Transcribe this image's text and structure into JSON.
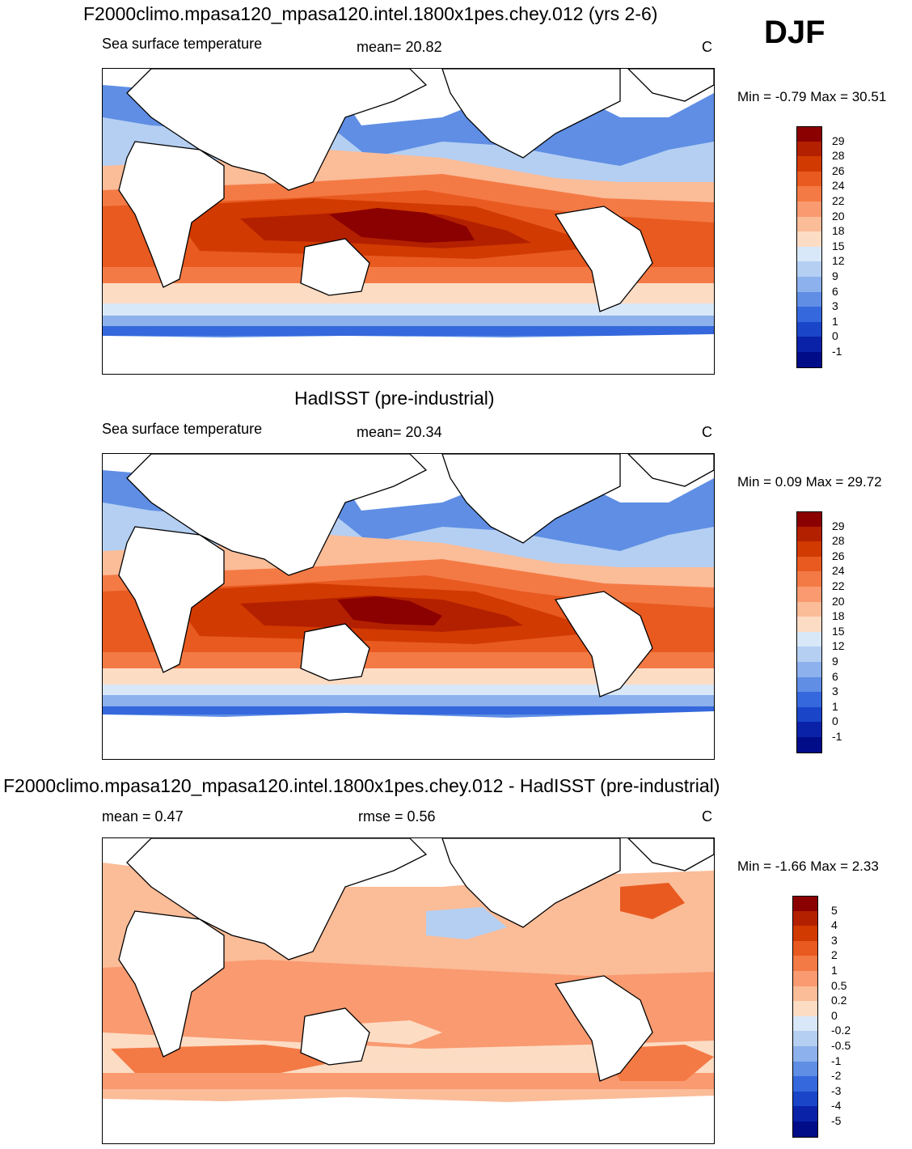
{
  "season": "DJF",
  "panels": [
    {
      "title": "F2000climo.mpasa120_mpasa120.intel.1800x1pes.chey.012 (yrs 2-6)",
      "left_label": "Sea surface temperature",
      "center_label": "mean=  20.82",
      "unit": "C",
      "minmax": "Min =  -0.79 Max =  30.51"
    },
    {
      "title": "HadISST (pre-industrial)",
      "left_label": "Sea surface temperature",
      "center_label": "mean=  20.34",
      "unit": "C",
      "minmax": "Min =   0.09 Max =  29.72"
    },
    {
      "title": "F2000climo.mpasa120_mpasa120.intel.1800x1pes.chey.012 - HadISST (pre-industrial)",
      "left_label": "mean =   0.47",
      "center_label": "rmse =   0.56",
      "unit": "C",
      "minmax": "Min =  -1.66 Max =   2.33"
    }
  ],
  "colorbars": {
    "sst": {
      "labels": [
        "29",
        "28",
        "26",
        "24",
        "22",
        "20",
        "18",
        "15",
        "12",
        "9",
        "6",
        "3",
        "1",
        "0",
        "-1"
      ],
      "colors": [
        "#8b0000",
        "#b32000",
        "#d13a00",
        "#e85a20",
        "#f47a45",
        "#f99a70",
        "#fbbc98",
        "#fddcc4",
        "#d8e8f8",
        "#b4cff2",
        "#8db1ec",
        "#5f8ee4",
        "#3568dc",
        "#1a45c8",
        "#0a22a8",
        "#000c88"
      ]
    },
    "diff": {
      "labels": [
        "5",
        "4",
        "3",
        "2",
        "1",
        "0.5",
        "0.2",
        "0",
        "-0.2",
        "-0.5",
        "-1",
        "-2",
        "-3",
        "-4",
        "-5"
      ],
      "colors": [
        "#8b0000",
        "#b32000",
        "#d13a00",
        "#e85a20",
        "#f47a45",
        "#f99a70",
        "#fbbc98",
        "#fddcc4",
        "#d8e8f8",
        "#b4cff2",
        "#8db1ec",
        "#5f8ee4",
        "#3568dc",
        "#1a45c8",
        "#0a22a8",
        "#000c88"
      ]
    }
  }
}
